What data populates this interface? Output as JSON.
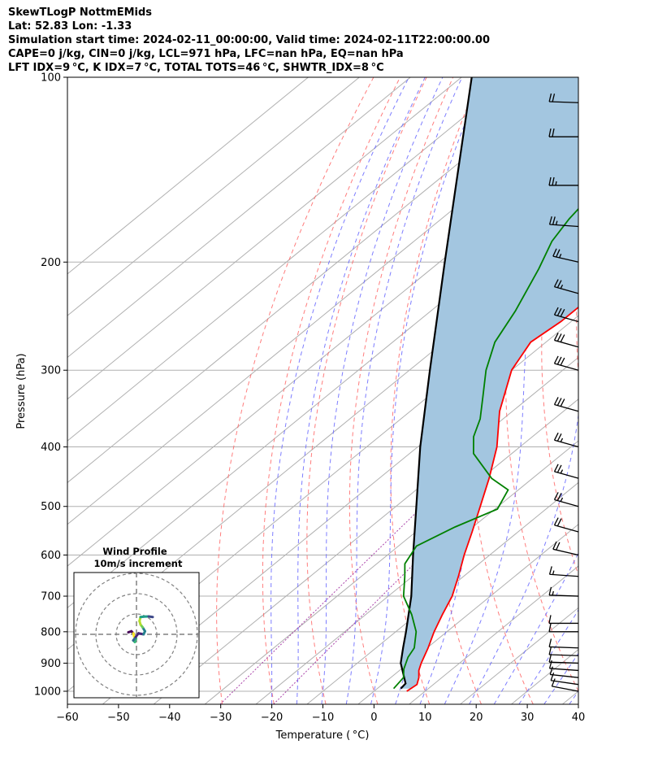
{
  "header": {
    "line1": "SkewTLogP NottmEMids",
    "line2": "Lat: 52.83   Lon: -1.33",
    "line3": "Simulation start time: 2024-02-11_00:00:00, Valid time: 2024-02-11T22:00:00.00",
    "line4": "CAPE=0 j/kg, CIN=0 j/kg, LCL=971 hPa, LFC=nan hPa, EQ=nan hPa",
    "line5": "LFT IDX=9 °C, K IDX=7 °C, TOTAL TOTS=46 °C, SHWTR_IDX=8 °C"
  },
  "chart_data": {
    "type": "line",
    "xlabel": "Temperature ( °C)",
    "ylabel": "Pressure (hPa)",
    "xlim": [
      -60,
      40
    ],
    "ylim": [
      1050,
      100
    ],
    "y_scale": "log",
    "skew": true,
    "grid": true,
    "x_ticks": [
      -60,
      -50,
      -40,
      -30,
      -20,
      -10,
      0,
      10,
      20,
      30,
      40
    ],
    "x_tick_labels": [
      "−60",
      "−50",
      "−40",
      "−30",
      "−20",
      "−10",
      "0",
      "10",
      "20",
      "30",
      "40"
    ],
    "y_ticks": [
      1000,
      900,
      800,
      700,
      600,
      500,
      400,
      300,
      200,
      100
    ],
    "y_tick_labels": [
      "1000",
      "900",
      "800",
      "700",
      "600",
      "500",
      "400",
      "300",
      "200",
      "100"
    ],
    "colors": {
      "temperature": "#ff0000",
      "dewpoint": "#008000",
      "parcel": "#000000",
      "cin_fill": "#a3c6e0",
      "dry_adiabats": "#ff6666",
      "moist_adiabats": "#6666ff",
      "mixing_ratio": "#aa44aa",
      "isotherms": "#b0b0b0"
    },
    "series": [
      {
        "key": "temperature",
        "points": [
          [
            1000,
            6.4
          ],
          [
            975,
            6.8
          ],
          [
            950,
            5.5
          ],
          [
            925,
            3.8
          ],
          [
            900,
            2.5
          ],
          [
            850,
            0.2
          ],
          [
            800,
            -2.5
          ],
          [
            750,
            -5.0
          ],
          [
            700,
            -7.5
          ],
          [
            650,
            -11.0
          ],
          [
            600,
            -15.0
          ],
          [
            550,
            -19.0
          ],
          [
            500,
            -23.5
          ],
          [
            450,
            -28.5
          ],
          [
            400,
            -34.5
          ],
          [
            350,
            -42.5
          ],
          [
            300,
            -50.0
          ],
          [
            270,
            -53.0
          ],
          [
            250,
            -52.0
          ],
          [
            220,
            -52.0
          ],
          [
            200,
            -53.5
          ],
          [
            180,
            -55.0
          ],
          [
            160,
            -56.5
          ],
          [
            140,
            -59.0
          ],
          [
            125,
            -62.0
          ],
          [
            110,
            -65.0
          ],
          [
            100,
            -67.5
          ]
        ]
      },
      {
        "key": "dewpoint",
        "points": [
          [
            990,
            3.2
          ],
          [
            950,
            2.5
          ],
          [
            920,
            0.5
          ],
          [
            880,
            -1.5
          ],
          [
            850,
            -2.5
          ],
          [
            800,
            -6.0
          ],
          [
            750,
            -11.0
          ],
          [
            700,
            -17.0
          ],
          [
            650,
            -21.5
          ],
          [
            620,
            -24.5
          ],
          [
            580,
            -26.5
          ],
          [
            540,
            -23.5
          ],
          [
            505,
            -19.5
          ],
          [
            470,
            -22.0
          ],
          [
            450,
            -28.0
          ],
          [
            410,
            -37.5
          ],
          [
            385,
            -41.5
          ],
          [
            360,
            -44.5
          ],
          [
            330,
            -49.5
          ],
          [
            300,
            -55.0
          ],
          [
            270,
            -60.0
          ],
          [
            240,
            -63.5
          ],
          [
            205,
            -69.0
          ],
          [
            185,
            -73.0
          ],
          [
            170,
            -75.0
          ],
          [
            140,
            -78.0
          ],
          [
            120,
            -81.0
          ],
          [
            100,
            -86.0
          ]
        ]
      },
      {
        "key": "parcel",
        "points": [
          [
            990,
            4.6
          ],
          [
            971,
            4.3
          ],
          [
            900,
            -1.5
          ],
          [
            850,
            -4.7
          ],
          [
            800,
            -8.0
          ],
          [
            700,
            -15.5
          ],
          [
            600,
            -25.0
          ],
          [
            500,
            -36.0
          ],
          [
            400,
            -49.5
          ],
          [
            300,
            -66.0
          ],
          [
            200,
            -89.0
          ],
          [
            100,
            -128.0
          ]
        ]
      }
    ],
    "wind_barbs": [
      {
        "p": 1000,
        "dir": 295,
        "spd": 10
      },
      {
        "p": 975,
        "dir": 290,
        "spd": 10
      },
      {
        "p": 950,
        "dir": 285,
        "spd": 10
      },
      {
        "p": 925,
        "dir": 280,
        "spd": 10
      },
      {
        "p": 900,
        "dir": 275,
        "spd": 10
      },
      {
        "p": 875,
        "dir": 275,
        "spd": 10
      },
      {
        "p": 850,
        "dir": 275,
        "spd": 10
      },
      {
        "p": 800,
        "dir": 270,
        "spd": 10
      },
      {
        "p": 775,
        "dir": 270,
        "spd": 10
      },
      {
        "p": 700,
        "dir": 275,
        "spd": 15
      },
      {
        "p": 650,
        "dir": 280,
        "spd": 15
      },
      {
        "p": 600,
        "dir": 300,
        "spd": 20
      },
      {
        "p": 550,
        "dir": 305,
        "spd": 20
      },
      {
        "p": 500,
        "dir": 305,
        "spd": 25
      },
      {
        "p": 450,
        "dir": 305,
        "spd": 25
      },
      {
        "p": 400,
        "dir": 305,
        "spd": 25
      },
      {
        "p": 350,
        "dir": 305,
        "spd": 30
      },
      {
        "p": 300,
        "dir": 305,
        "spd": 30
      },
      {
        "p": 275,
        "dir": 305,
        "spd": 30
      },
      {
        "p": 250,
        "dir": 305,
        "spd": 30
      },
      {
        "p": 225,
        "dir": 305,
        "spd": 25
      },
      {
        "p": 200,
        "dir": 300,
        "spd": 25
      },
      {
        "p": 175,
        "dir": 280,
        "spd": 25
      },
      {
        "p": 150,
        "dir": 270,
        "spd": 25
      },
      {
        "p": 125,
        "dir": 270,
        "spd": 20
      },
      {
        "p": 110,
        "dir": 275,
        "spd": 20
      }
    ],
    "inset": {
      "title": "Wind Profile",
      "subtitle": "10m/s increment",
      "rings_ms": [
        10,
        20,
        30
      ],
      "colormap": "viridis",
      "hodograph_uv": [
        [
          -4,
          1
        ],
        [
          -2.5,
          1.5
        ],
        [
          -1.5,
          0.5
        ],
        [
          -1.2,
          -1.0
        ],
        [
          -0.2,
          -2.0
        ],
        [
          -0.8,
          -3.8
        ],
        [
          -1.6,
          -3.0
        ],
        [
          -0.3,
          -1.2
        ],
        [
          1.0,
          0.5
        ],
        [
          3.5,
          0.0
        ],
        [
          4.2,
          1.5
        ],
        [
          3.0,
          3.5
        ],
        [
          2.0,
          4.8
        ],
        [
          1.5,
          6.5
        ],
        [
          2.0,
          8.5
        ],
        [
          3.5,
          8.7
        ],
        [
          6.0,
          8.8
        ],
        [
          8.0,
          8.5
        ]
      ]
    }
  }
}
